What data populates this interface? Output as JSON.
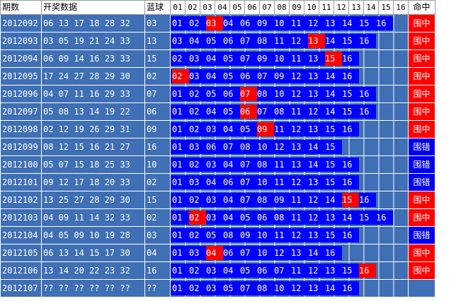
{
  "headers": {
    "period": "期数",
    "draw": "开奖数据",
    "blue": "蓝球",
    "balls": [
      "01",
      "02",
      "03",
      "04",
      "05",
      "06",
      "07",
      "08",
      "09",
      "10",
      "11",
      "12",
      "13",
      "14",
      "15",
      "16"
    ],
    "hit": "命中"
  },
  "rows": [
    {
      "period": "2012092",
      "draw": "06 13 17 18 28 32",
      "blue": "03",
      "picks": [
        "01",
        "02",
        "03",
        "04",
        "06",
        "09",
        "10",
        "11",
        "12",
        "13",
        "14",
        "15",
        "16"
      ],
      "hit": "围中"
    },
    {
      "period": "2012093",
      "draw": "03 05 19 21 24 33",
      "blue": "13",
      "picks": [
        "03",
        "04",
        "05",
        "06",
        "07",
        "08",
        "11",
        "12",
        "13",
        "14",
        "15",
        "16"
      ],
      "hit": "围中"
    },
    {
      "period": "2012094",
      "draw": "06 09 14 16 23 33",
      "blue": "15",
      "picks": [
        "02",
        "03",
        "04",
        "05",
        "07",
        "09",
        "10",
        "11",
        "13",
        "15",
        "16"
      ],
      "hit": "围中"
    },
    {
      "period": "2012095",
      "draw": "17 24 27 28 29 30",
      "blue": "02",
      "picks": [
        "02",
        "03",
        "04",
        "05",
        "06",
        "07",
        "09",
        "12",
        "13",
        "14",
        "16"
      ],
      "hit": "围中"
    },
    {
      "period": "2012096",
      "draw": "04 07 11 16 29 33",
      "blue": "07",
      "picks": [
        "01",
        "02",
        "05",
        "06",
        "07",
        "08",
        "10",
        "12",
        "13",
        "14",
        "15",
        "16"
      ],
      "hit": "围中"
    },
    {
      "period": "2012097",
      "draw": "05 08 13 14 19 22",
      "blue": "06",
      "picks": [
        "01",
        "02",
        "04",
        "05",
        "06",
        "07",
        "08",
        "11",
        "12",
        "14",
        "15",
        "16"
      ],
      "hit": "围中"
    },
    {
      "period": "2012098",
      "draw": "02 12 19 26 29 31",
      "blue": "09",
      "picks": [
        "01",
        "02",
        "03",
        "04",
        "05",
        "09",
        "11",
        "12",
        "13",
        "15",
        "16"
      ],
      "hit": "围中"
    },
    {
      "period": "2012099",
      "draw": "08 12 15 16 21 27",
      "blue": "16",
      "picks": [
        "01",
        "03",
        "06",
        "07",
        "08",
        "10",
        "12",
        "13",
        "14",
        "15"
      ],
      "hit": "围错"
    },
    {
      "period": "2012100",
      "draw": "05 07 15 18 25 33",
      "blue": "10",
      "picks": [
        "01",
        "02",
        "03",
        "04",
        "07",
        "08",
        "11",
        "13",
        "14",
        "15",
        "16"
      ],
      "hit": "围错"
    },
    {
      "period": "2012101",
      "draw": "09 12 17 18 20 33",
      "blue": "02",
      "picks": [
        "01",
        "03",
        "04",
        "06",
        "07",
        "10",
        "11",
        "12",
        "13",
        "15",
        "16"
      ],
      "hit": "围错"
    },
    {
      "period": "2012102",
      "draw": "13 25 27 28 29 30",
      "blue": "15",
      "picks": [
        "01",
        "02",
        "03",
        "04",
        "07",
        "08",
        "09",
        "11",
        "12",
        "14",
        "15",
        "16"
      ],
      "hit": "围中"
    },
    {
      "period": "2012103",
      "draw": "04 09 11 14 32 33",
      "blue": "02",
      "picks": [
        "01",
        "02",
        "03",
        "04",
        "05",
        "06",
        "08",
        "11",
        "12",
        "13",
        "14",
        "15",
        "16"
      ],
      "hit": "围中"
    },
    {
      "period": "2012104",
      "draw": "04 05 09 10 19 28",
      "blue": "03",
      "picks": [
        "01",
        "02",
        "05",
        "08",
        "09",
        "10",
        "11",
        "12",
        "13",
        "15",
        "16"
      ],
      "hit": "围错"
    },
    {
      "period": "2012105",
      "draw": "06 13 14 15 17 30",
      "blue": "04",
      "picks": [
        "01",
        "03",
        "04",
        "06",
        "07",
        "10",
        "12",
        "13",
        "14",
        "16"
      ],
      "hit": "围中"
    },
    {
      "period": "2012106",
      "draw": "13 14 20 22 23 32",
      "blue": "16",
      "picks": [
        "01",
        "02",
        "03",
        "04",
        "05",
        "06",
        "07",
        "11",
        "12",
        "13",
        "15",
        "16"
      ],
      "hit": "围中"
    },
    {
      "period": "2012107",
      "draw": "?? ?? ?? ?? ?? ??",
      "blue": "??",
      "picks": [
        "01",
        "02",
        "03",
        "05",
        "07",
        "08",
        "10",
        "12",
        "13",
        "14",
        "16"
      ],
      "hit": ""
    }
  ],
  "colors": {
    "row_bg": "#3f6fb4",
    "pick_bar": "#0000ff",
    "blue_highlight": "#ff0000",
    "hit_yes": "#ff0000",
    "hit_no": "#0000ee"
  }
}
